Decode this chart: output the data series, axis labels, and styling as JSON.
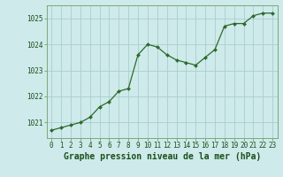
{
  "x": [
    0,
    1,
    2,
    3,
    4,
    5,
    6,
    7,
    8,
    9,
    10,
    11,
    12,
    13,
    14,
    15,
    16,
    17,
    18,
    19,
    20,
    21,
    22,
    23
  ],
  "y": [
    1020.7,
    1020.8,
    1020.9,
    1021.0,
    1021.2,
    1021.6,
    1021.8,
    1022.2,
    1022.3,
    1023.6,
    1024.0,
    1023.9,
    1023.6,
    1023.4,
    1023.3,
    1023.2,
    1023.5,
    1023.8,
    1024.7,
    1024.8,
    1024.8,
    1025.1,
    1025.2,
    1025.2
  ],
  "line_color": "#2d6a2d",
  "marker": "D",
  "marker_size": 2.0,
  "bg_color": "#ceeaea",
  "grid_color": "#aacece",
  "xlabel": "Graphe pression niveau de la mer (hPa)",
  "xlabel_fontsize": 7,
  "ylim_min": 1020.4,
  "ylim_max": 1025.5,
  "yticks": [
    1021,
    1022,
    1023,
    1024,
    1025
  ],
  "xticks": [
    0,
    1,
    2,
    3,
    4,
    5,
    6,
    7,
    8,
    9,
    10,
    11,
    12,
    13,
    14,
    15,
    16,
    17,
    18,
    19,
    20,
    21,
    22,
    23
  ],
  "tick_label_color": "#1a4f1a",
  "tick_label_fontsize": 5.5,
  "axis_color": "#5a8a5a",
  "spine_color": "#7aaa7a",
  "linewidth": 0.9
}
